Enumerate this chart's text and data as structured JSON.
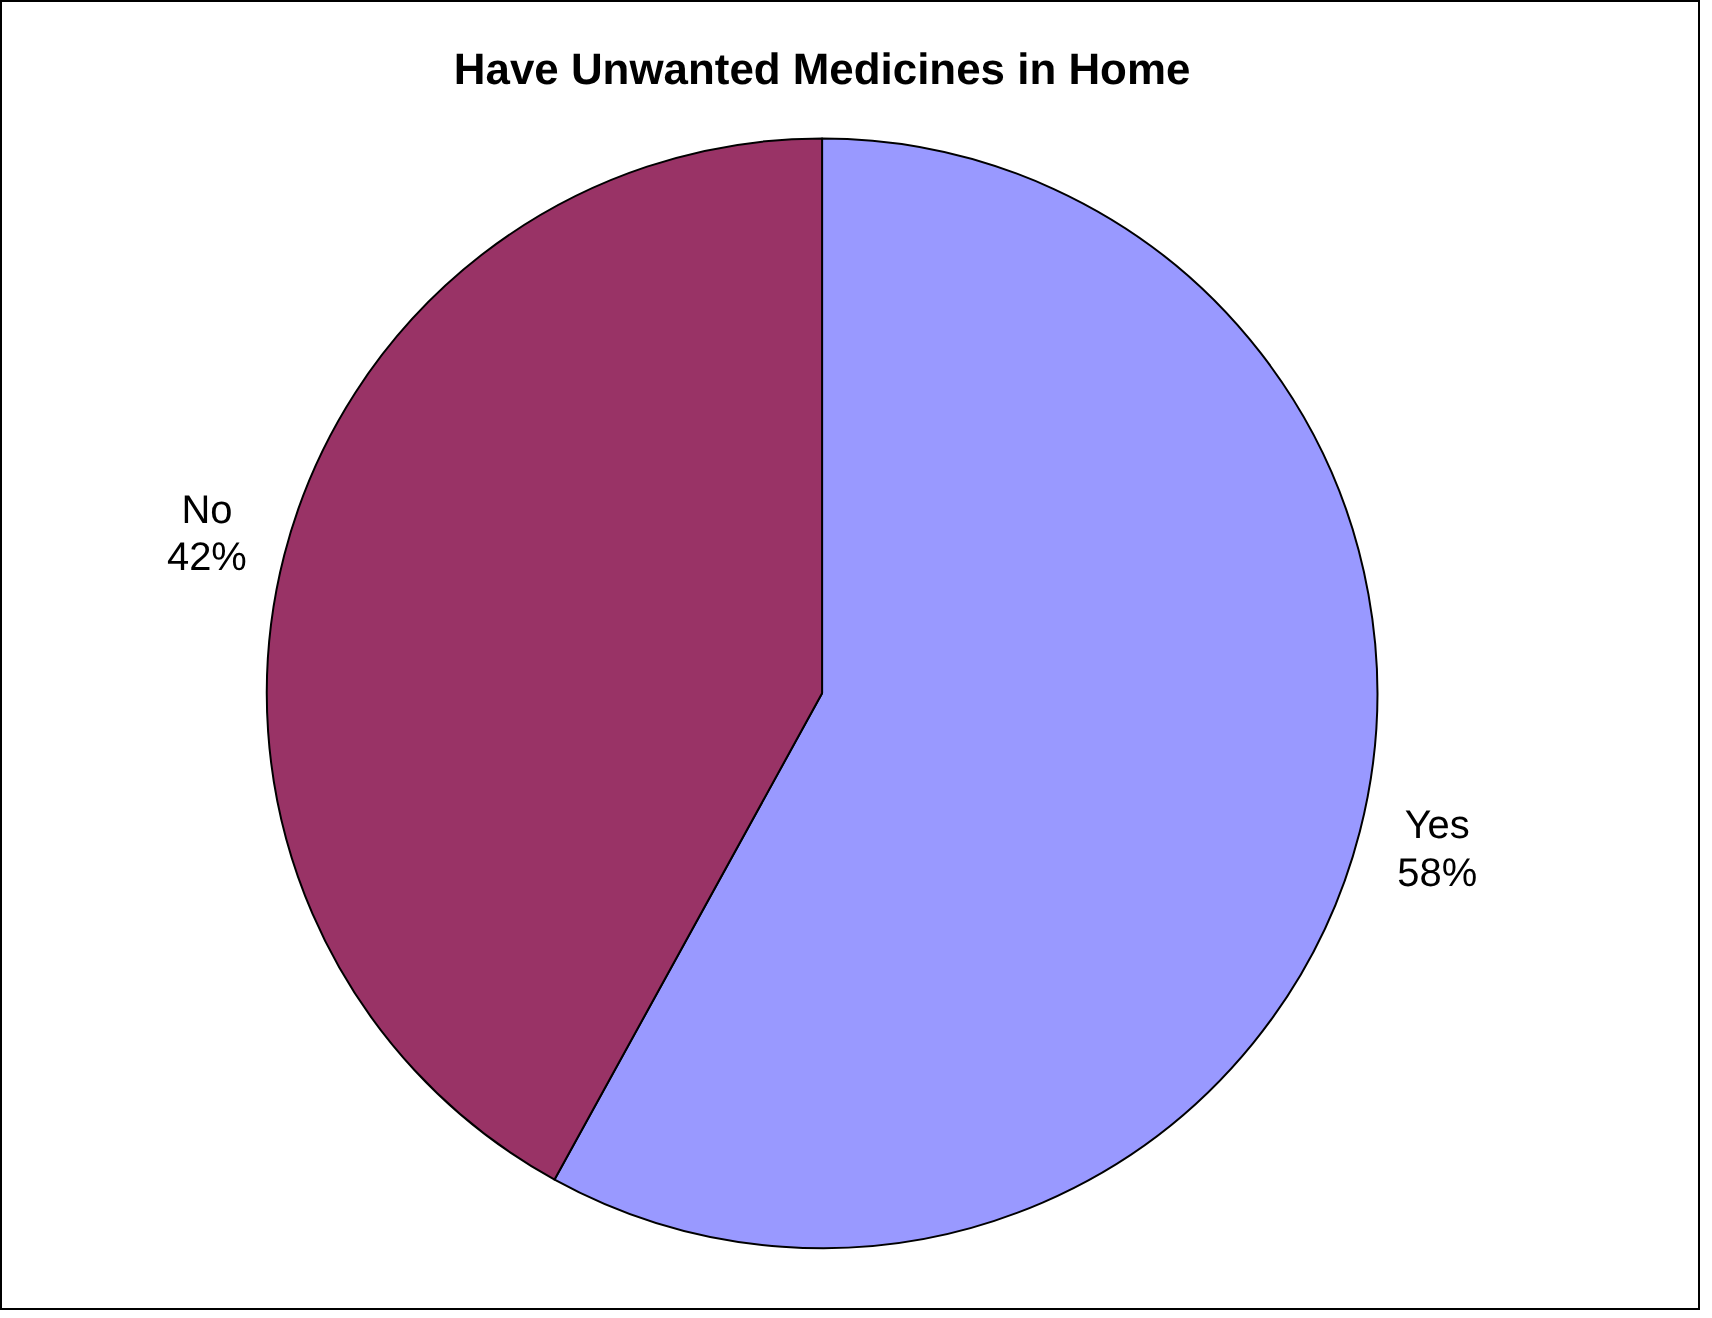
{
  "chart_data": {
    "type": "pie",
    "title": "Have Unwanted Medicines in Home",
    "categories": [
      "Yes",
      "No"
    ],
    "values": [
      58,
      42
    ],
    "value_labels": [
      "58%",
      "42%"
    ],
    "colors": [
      "#9999ff",
      "#993366"
    ],
    "legend": false
  }
}
